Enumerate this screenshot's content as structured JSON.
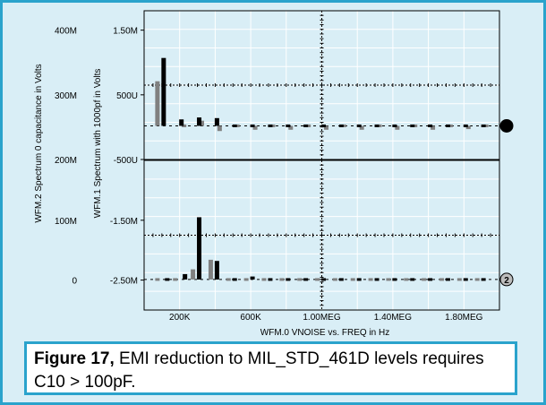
{
  "colors": {
    "background": "#d9eef6",
    "frame": "#2aa3cc",
    "bar_primary": "#000000",
    "bar_secondary": "#808080",
    "grid": "#ffffff"
  },
  "chart_data": {
    "type": "bar",
    "xlabel": "WFM.0   VNOISE vs. FREQ in Hz",
    "x_ticks": [
      "200K",
      "600K",
      "1.00MEG",
      "1.40MEG",
      "1.80MEG"
    ],
    "x_tick_values": [
      200000,
      600000,
      1000000,
      1400000,
      1800000
    ],
    "xlim": [
      0,
      2000000
    ],
    "grid": true,
    "panels": [
      {
        "id": "top",
        "marker": "1",
        "ylabel_outer": "WFM.2 Spectrum 0 capacitance in Volts",
        "ylabel_inner": "WFM.1 Spectrum with 1000pf in Volts",
        "outer_ticks": [
          "400M",
          "300M",
          "200M"
        ],
        "outer_tick_values": [
          0.4,
          0.3,
          0.2
        ],
        "inner_ticks": [
          "1.50M",
          "500U",
          "-500U"
        ],
        "inner_tick_values": [
          0.0015,
          0.0005,
          -0.0005
        ],
        "ylim": [
          -0.0005,
          0.0018
        ],
        "series": [
          {
            "color": "#808080",
            "x": [
              75000,
              225000,
              325000,
              425000,
              525000,
              625000,
              725000,
              825000,
              925000,
              1025000,
              1125000,
              1225000,
              1325000,
              1425000,
              1525000,
              1625000,
              1725000,
              1825000,
              1925000
            ],
            "y": [
              0.00071,
              2e-05,
              0.0001,
              -6e-05,
              3e-05,
              -4e-05,
              2e-05,
              -4e-05,
              3e-05,
              -4e-05,
              2e-05,
              -4e-05,
              2e-05,
              -4e-05,
              2e-05,
              -4e-05,
              2e-05,
              -3e-05,
              2e-05
            ]
          },
          {
            "color": "#000000",
            "x": [
              110000,
              210000,
              310000,
              410000,
              510000,
              610000,
              710000,
              810000,
              910000,
              1010000,
              1110000,
              1210000,
              1310000,
              1410000,
              1510000,
              1610000,
              1710000,
              1810000,
              1910000
            ],
            "y": [
              0.00107,
              0.00012,
              0.00015,
              0.00014,
              3e-05,
              6e-05,
              3e-05,
              4e-05,
              4e-05,
              4e-05,
              4e-05,
              3e-05,
              3e-05,
              3e-05,
              3e-05,
              3e-05,
              3e-05,
              2e-05,
              2e-05
            ]
          }
        ]
      },
      {
        "id": "bottom",
        "marker": "2",
        "outer_ticks": [
          "100M",
          "0"
        ],
        "outer_tick_values": [
          0.1,
          0
        ],
        "inner_ticks": [
          "-1.50M",
          "-2.50M"
        ],
        "inner_tick_values": [
          -0.0015,
          -0.0025
        ],
        "ylim": [
          -0.003,
          -0.0005
        ],
        "series": [
          {
            "color": "#808080",
            "x": [
              75000,
              175000,
              275000,
              375000,
              475000,
              575000,
              675000,
              775000,
              875000,
              975000,
              1075000,
              1175000,
              1275000,
              1375000,
              1475000,
              1575000,
              1675000,
              1775000,
              1875000
            ],
            "y": [
              -0.00249,
              -0.00245,
              -0.00232,
              -0.00216,
              -0.00249,
              -0.00249,
              -0.00249,
              -0.00249,
              -0.00249,
              -0.00249,
              -0.00249,
              -0.00249,
              -0.00249,
              -0.00249,
              -0.00249,
              -0.00249,
              -0.00249,
              -0.00249,
              -0.00249
            ]
          },
          {
            "color": "#000000",
            "x": [
              130000,
              230000,
              310000,
              410000,
              510000,
              610000,
              710000,
              810000,
              910000,
              1010000,
              1110000,
              1210000,
              1310000,
              1410000,
              1510000,
              1610000,
              1710000,
              1810000,
              1910000
            ],
            "y": [
              -0.00246,
              -0.0024,
              -0.00145,
              -0.00218,
              -0.00246,
              -0.00244,
              -0.00246,
              -0.00246,
              -0.00246,
              -0.00246,
              -0.00246,
              -0.00246,
              -0.00246,
              -0.00246,
              -0.00246,
              -0.00246,
              -0.00246,
              -0.00246,
              -0.00246
            ]
          }
        ]
      }
    ]
  },
  "caption": {
    "label": "Figure 17,",
    "text": " EMI reduction to MIL_STD_461D levels requires C10 > 100pF."
  }
}
